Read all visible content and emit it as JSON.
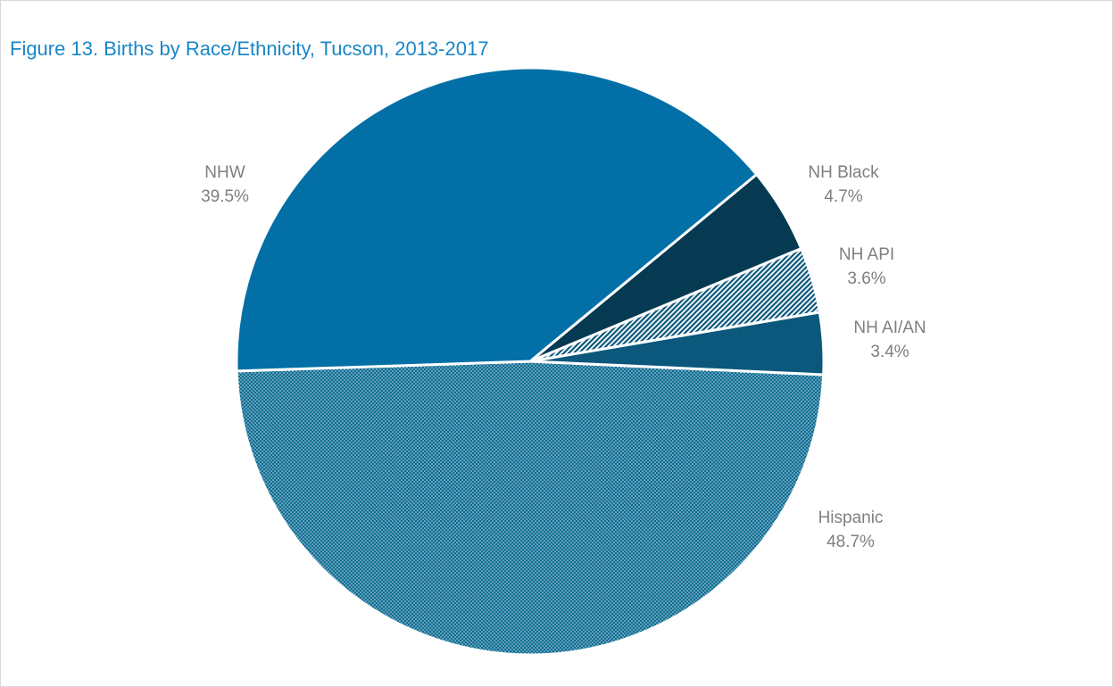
{
  "chart_data": {
    "type": "pie",
    "title": "Figure 13. Births by Race/Ethnicity, Tucson, 2013-2017",
    "slices": [
      {
        "label": "Hispanic",
        "value": 48.7,
        "value_label": "48.7%",
        "color": "#106d93",
        "pattern": "dots"
      },
      {
        "label": "NH AI/AN",
        "value": 3.4,
        "value_label": "3.4%",
        "color": "#0b587c",
        "pattern": "solid"
      },
      {
        "label": "NH API",
        "value": 3.6,
        "value_label": "3.6%",
        "color": "#0b587c",
        "pattern": "diagonal-hatch"
      },
      {
        "label": "NH Black",
        "value": 4.7,
        "value_label": "4.7%",
        "color": "#063a52",
        "pattern": "solid"
      },
      {
        "label": "NHW",
        "value": 39.5,
        "value_label": "39.5%",
        "color": "#0270a6",
        "pattern": "solid"
      }
    ],
    "legend": "none",
    "label_position": "outside"
  }
}
